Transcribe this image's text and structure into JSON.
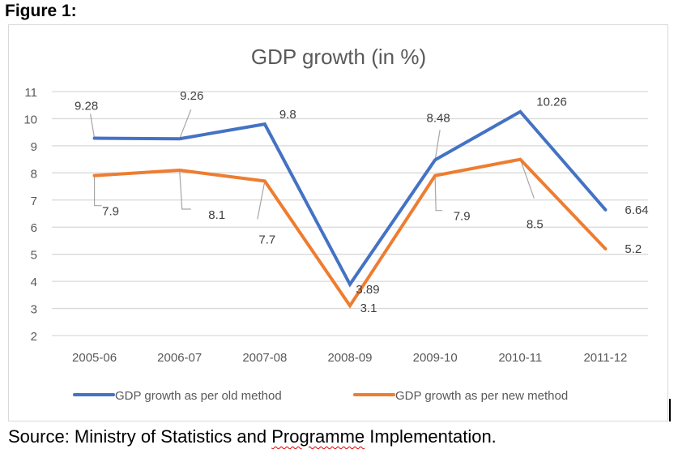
{
  "figure_label": "Figure 1:",
  "source": {
    "prefix": "Source: Ministry of Statistics and ",
    "misspelled": "Programme",
    "suffix": " Implementation."
  },
  "chart_data": {
    "type": "line",
    "title": "GDP growth (in %)",
    "xlabel": "",
    "ylabel": "",
    "categories": [
      "2005-06",
      "2006-07",
      "2007-08",
      "2008-09",
      "2009-10",
      "2010-11",
      "2011-12"
    ],
    "ylim": [
      2,
      11
    ],
    "yticks": [
      2,
      3,
      4,
      5,
      6,
      7,
      8,
      9,
      10,
      11
    ],
    "grid": true,
    "legend_position": "bottom",
    "series": [
      {
        "name": "GDP growth as per old method",
        "color": "#4472c4",
        "values": [
          9.28,
          9.26,
          9.8,
          3.89,
          8.48,
          10.26,
          6.64
        ],
        "labels": [
          "9.28",
          "9.26",
          "9.8",
          "3.89",
          "8.48",
          "10.26",
          "6.64"
        ]
      },
      {
        "name": "GDP growth as per new method",
        "color": "#ed7d31",
        "values": [
          7.9,
          8.1,
          7.7,
          3.1,
          7.9,
          8.5,
          5.2
        ],
        "labels": [
          "7.9",
          "8.1",
          "7.7",
          "3.1",
          "7.9",
          "8.5",
          "5.2"
        ]
      }
    ]
  }
}
